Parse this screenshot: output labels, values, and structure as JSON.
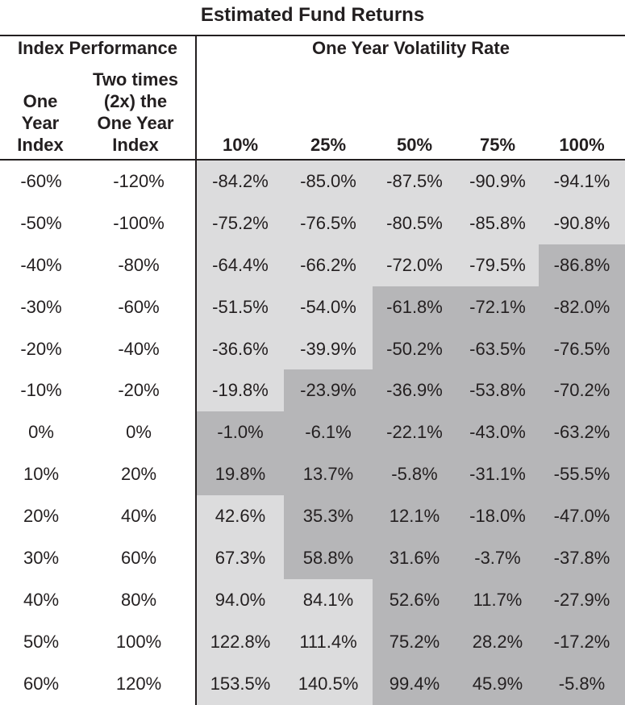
{
  "title": "Estimated Fund Returns",
  "headers": {
    "left_group": "Index Performance",
    "right_group": "One Year Volatility Rate",
    "columns": [
      "One\nYear\nIndex",
      "Two times\n(2x) the\nOne Year\nIndex",
      "10%",
      "25%",
      "50%",
      "75%",
      "100%"
    ]
  },
  "shade_colors": {
    "light": "#dcdcdd",
    "dark": "#b6b6b8"
  },
  "rows": [
    {
      "index": "-60%",
      "two_x": "-120%",
      "values": [
        "-84.2%",
        "-85.0%",
        "-87.5%",
        "-90.9%",
        "-94.1%"
      ],
      "shade": [
        1,
        1,
        1,
        1,
        1
      ]
    },
    {
      "index": "-50%",
      "two_x": "-100%",
      "values": [
        "-75.2%",
        "-76.5%",
        "-80.5%",
        "-85.8%",
        "-90.8%"
      ],
      "shade": [
        1,
        1,
        1,
        1,
        1
      ]
    },
    {
      "index": "-40%",
      "two_x": "-80%",
      "values": [
        "-64.4%",
        "-66.2%",
        "-72.0%",
        "-79.5%",
        "-86.8%"
      ],
      "shade": [
        1,
        1,
        1,
        1,
        2
      ]
    },
    {
      "index": "-30%",
      "two_x": "-60%",
      "values": [
        "-51.5%",
        "-54.0%",
        "-61.8%",
        "-72.1%",
        "-82.0%"
      ],
      "shade": [
        1,
        1,
        2,
        2,
        2
      ]
    },
    {
      "index": "-20%",
      "two_x": "-40%",
      "values": [
        "-36.6%",
        "-39.9%",
        "-50.2%",
        "-63.5%",
        "-76.5%"
      ],
      "shade": [
        1,
        1,
        2,
        2,
        2
      ]
    },
    {
      "index": "-10%",
      "two_x": "-20%",
      "values": [
        "-19.8%",
        "-23.9%",
        "-36.9%",
        "-53.8%",
        "-70.2%"
      ],
      "shade": [
        1,
        2,
        2,
        2,
        2
      ]
    },
    {
      "index": "0%",
      "two_x": "0%",
      "values": [
        "-1.0%",
        "-6.1%",
        "-22.1%",
        "-43.0%",
        "-63.2%"
      ],
      "shade": [
        2,
        2,
        2,
        2,
        2
      ]
    },
    {
      "index": "10%",
      "two_x": "20%",
      "values": [
        "19.8%",
        "13.7%",
        "-5.8%",
        "-31.1%",
        "-55.5%"
      ],
      "shade": [
        2,
        2,
        2,
        2,
        2
      ]
    },
    {
      "index": "20%",
      "two_x": "40%",
      "values": [
        "42.6%",
        "35.3%",
        "12.1%",
        "-18.0%",
        "-47.0%"
      ],
      "shade": [
        1,
        2,
        2,
        2,
        2
      ]
    },
    {
      "index": "30%",
      "two_x": "60%",
      "values": [
        "67.3%",
        "58.8%",
        "31.6%",
        "-3.7%",
        "-37.8%"
      ],
      "shade": [
        1,
        2,
        2,
        2,
        2
      ]
    },
    {
      "index": "40%",
      "two_x": "80%",
      "values": [
        "94.0%",
        "84.1%",
        "52.6%",
        "11.7%",
        "-27.9%"
      ],
      "shade": [
        1,
        1,
        2,
        2,
        2
      ]
    },
    {
      "index": "50%",
      "two_x": "100%",
      "values": [
        "122.8%",
        "111.4%",
        "75.2%",
        "28.2%",
        "-17.2%"
      ],
      "shade": [
        1,
        1,
        2,
        2,
        2
      ]
    },
    {
      "index": "60%",
      "two_x": "120%",
      "values": [
        "153.5%",
        "140.5%",
        "99.4%",
        "45.9%",
        "-5.8%"
      ],
      "shade": [
        1,
        1,
        2,
        2,
        2
      ]
    }
  ]
}
